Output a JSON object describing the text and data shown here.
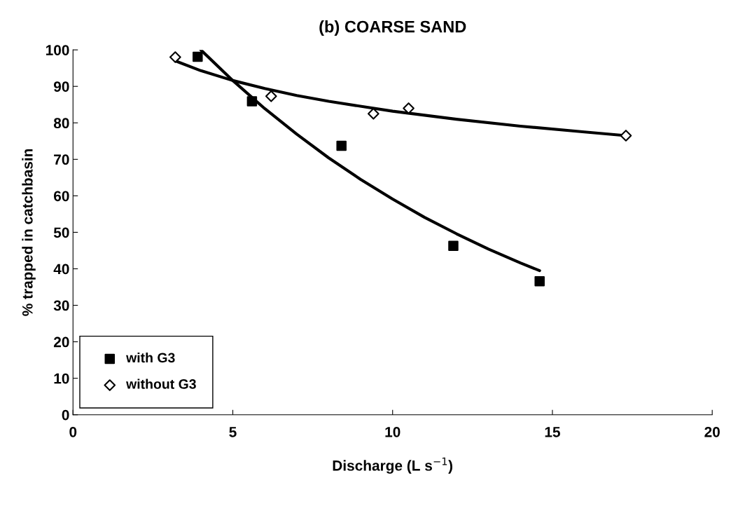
{
  "chart_data": {
    "type": "scatter",
    "title": "(b) COARSE SAND",
    "xlabel": "Discharge (L s$^{−1}$)",
    "ylabel": "% trapped in catchbasin",
    "series": [
      {
        "name": "with G3",
        "marker": "square",
        "color": "#000000",
        "x": [
          3.9,
          5.6,
          8.4,
          11.9,
          14.6
        ],
        "values": [
          98.1,
          85.9,
          73.7,
          46.3,
          36.6
        ]
      },
      {
        "name": "without G3",
        "marker": "diamond",
        "color": "#000000",
        "x": [
          3.2,
          6.2,
          9.4,
          10.5,
          17.3
        ],
        "values": [
          98,
          87.3,
          82.5,
          84,
          76.5
        ]
      },
      {
        "type": "line",
        "marker": "none",
        "color": "#000000",
        "x": [
          4.0,
          5,
          6,
          7,
          8,
          9,
          10,
          11,
          12,
          13,
          14,
          14.6
        ],
        "values": [
          100,
          91.6,
          83.9,
          76.9,
          70.4,
          64.5,
          59.1,
          54.1,
          49.6,
          45.4,
          41.6,
          39.5
        ]
      },
      {
        "type": "line",
        "marker": "none",
        "color": "#000000",
        "x": [
          3.2,
          4,
          5,
          6,
          7,
          8,
          10,
          12,
          14,
          16,
          17.3
        ],
        "values": [
          97,
          94.3,
          91.6,
          89.4,
          87.5,
          85.9,
          83.2,
          81.0,
          79.1,
          77.5,
          76.5
        ]
      }
    ],
    "xlim": [
      0,
      20
    ],
    "xticks": [
      0,
      5,
      10,
      15,
      20
    ],
    "ylim": [
      0,
      100
    ],
    "yticks": [
      0,
      10,
      20,
      30,
      40,
      50,
      60,
      70,
      80,
      90,
      100
    ],
    "grid": false,
    "legend": "bottom left"
  }
}
